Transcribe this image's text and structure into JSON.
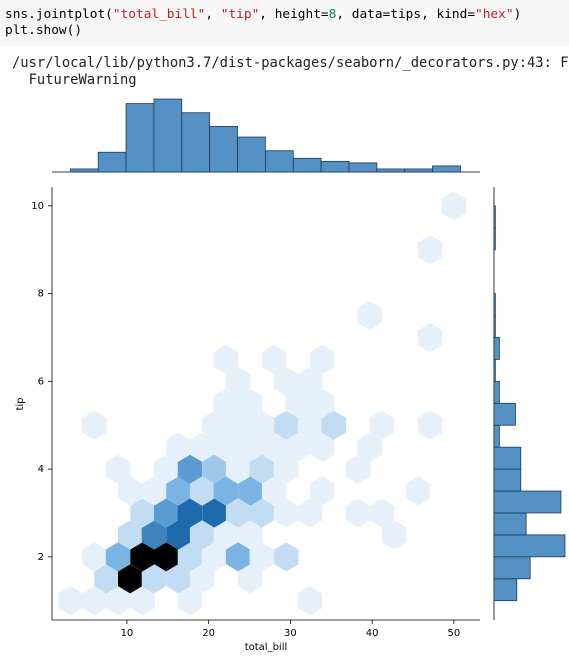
{
  "code": {
    "lines": [
      [
        {
          "text": "sns.jointplot(",
          "color": "#000000"
        },
        {
          "text": "\"total_bill\"",
          "color": "#ba2121"
        },
        {
          "text": ", ",
          "color": "#000000"
        },
        {
          "text": "\"tip\"",
          "color": "#ba2121"
        },
        {
          "text": ", height=",
          "color": "#000000"
        },
        {
          "text": "8",
          "color": "#098658"
        },
        {
          "text": ", data=tips, kind=",
          "color": "#000000"
        },
        {
          "text": "\"hex\"",
          "color": "#ba2121"
        },
        {
          "text": ")",
          "color": "#000000"
        }
      ],
      [
        {
          "text": "plt.show()",
          "color": "#000000"
        }
      ]
    ]
  },
  "output": {
    "lines": [
      "/usr/local/lib/python3.7/dist-packages/seaborn/_decorators.py:43: F",
      "  FutureWarning"
    ]
  },
  "chart_data": {
    "type": "hexbin",
    "xlabel": "total_bill",
    "ylabel": "tip",
    "xlim": [
      0.83,
      53.2
    ],
    "ylim": [
      0.56,
      10.43
    ],
    "xticks": [
      10,
      20,
      30,
      40,
      50
    ],
    "yticks": [
      2,
      4,
      6,
      8,
      10
    ],
    "colors": [
      "#e6f0fa",
      "#7ab4e4",
      "#1e6aad",
      "#000000"
    ],
    "x": [
      3.1,
      6.0,
      8.9,
      11.9,
      17.7,
      32.4,
      7.5,
      10.4,
      13.3,
      16.3,
      19.2,
      25.1,
      6.0,
      8.9,
      11.9,
      14.8,
      17.7,
      20.7,
      23.6,
      26.5,
      29.5,
      10.4,
      13.3,
      16.3,
      19.2,
      22.1,
      25.1,
      42.7,
      11.9,
      14.8,
      17.7,
      20.7,
      23.6,
      26.5,
      29.5,
      32.4,
      38.3,
      41.2,
      10.4,
      13.3,
      16.3,
      19.2,
      22.1,
      25.1,
      28.0,
      33.9,
      45.6,
      8.9,
      14.8,
      17.7,
      20.7,
      23.6,
      26.5,
      29.5,
      38.3,
      16.3,
      19.2,
      22.1,
      25.1,
      28.0,
      30.9,
      33.9,
      39.7,
      6.0,
      20.7,
      23.6,
      26.5,
      29.5,
      32.4,
      35.3,
      41.2,
      47.1,
      22.1,
      25.1,
      30.9,
      33.9,
      23.6,
      29.5,
      32.4,
      22.1,
      28.0,
      33.9,
      47.1,
      39.7,
      47.1,
      50.0
    ],
    "y": [
      1.0,
      1.0,
      1.0,
      1.0,
      1.0,
      1.0,
      1.5,
      1.5,
      1.5,
      1.5,
      1.5,
      1.5,
      2.0,
      2.0,
      2.0,
      2.0,
      2.0,
      2.0,
      2.0,
      2.0,
      2.0,
      2.5,
      2.5,
      2.5,
      2.5,
      2.5,
      2.5,
      2.5,
      3.0,
      3.0,
      3.0,
      3.0,
      3.0,
      3.0,
      3.0,
      3.0,
      3.0,
      3.0,
      3.5,
      3.5,
      3.5,
      3.5,
      3.5,
      3.5,
      3.5,
      3.5,
      3.5,
      4.0,
      4.0,
      4.0,
      4.0,
      4.0,
      4.0,
      4.0,
      4.0,
      4.5,
      4.5,
      4.5,
      4.5,
      4.5,
      4.5,
      4.5,
      4.5,
      5.0,
      5.0,
      5.0,
      5.0,
      5.0,
      5.0,
      5.0,
      5.0,
      5.0,
      5.5,
      5.5,
      5.5,
      5.5,
      6.0,
      6.0,
      6.0,
      6.5,
      6.5,
      6.5,
      7.0,
      7.5,
      9.0,
      10.0
    ],
    "counts": [
      1,
      1,
      1,
      1,
      1,
      1,
      2,
      10,
      2,
      2,
      1,
      1,
      1,
      4,
      10,
      10,
      2,
      1,
      4,
      1,
      2,
      2,
      6,
      7,
      2,
      1,
      1,
      1,
      2,
      5,
      7,
      7,
      2,
      2,
      1,
      1,
      1,
      1,
      1,
      1,
      4,
      2,
      4,
      4,
      1,
      1,
      1,
      1,
      1,
      5,
      3,
      1,
      2,
      1,
      1,
      1,
      1,
      1,
      1,
      1,
      1,
      1,
      1,
      1,
      1,
      1,
      1,
      2,
      1,
      2,
      1,
      1,
      1,
      1,
      1,
      1,
      1,
      1,
      1,
      1,
      1,
      1,
      1,
      1,
      1,
      1
    ],
    "marginal_x": {
      "type": "hist",
      "color": "#5591c4",
      "bins": [
        3.07,
        6.48,
        9.89,
        13.3,
        16.71,
        20.12,
        23.53,
        26.94,
        30.35,
        33.76,
        37.17,
        40.58,
        43.99,
        47.4,
        50.81
      ],
      "counts": [
        2,
        13,
        45,
        48,
        39,
        30,
        23,
        14,
        9,
        7,
        6,
        2,
        2,
        4
      ],
      "ylim": [
        0,
        50
      ]
    },
    "marginal_y": {
      "type": "hist",
      "color": "#5591c4",
      "bins": [
        1.0,
        1.5,
        2.0,
        2.5,
        3.0,
        3.5,
        4.0,
        4.5,
        5.0,
        5.5,
        6.0,
        6.5,
        7.0,
        7.5,
        8.0,
        8.5,
        9.0,
        9.5,
        10.0
      ],
      "counts": [
        17,
        27,
        53,
        24,
        50,
        20,
        20,
        4,
        16,
        4,
        1,
        4,
        1,
        1,
        0,
        0,
        1,
        1
      ],
      "xlim": [
        0,
        56
      ]
    }
  }
}
